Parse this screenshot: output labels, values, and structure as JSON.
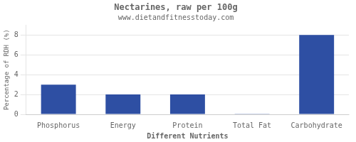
{
  "chart_data": {
    "type": "bar",
    "title": "Nectarines, raw per 100g",
    "subtitle": "www.dietandfitnesstoday.com",
    "xlabel": "Different Nutrients",
    "ylabel": "Percentage of RDH (%)",
    "categories": [
      "Phosphorus",
      "Energy",
      "Protein",
      "Total Fat",
      "Carbohydrate"
    ],
    "values": [
      3.0,
      2.0,
      2.0,
      0.05,
      8.0
    ],
    "color": "#2e4fa3",
    "ylim": [
      0,
      9
    ],
    "yticks": [
      0,
      2,
      4,
      6,
      8
    ],
    "grid": true
  }
}
